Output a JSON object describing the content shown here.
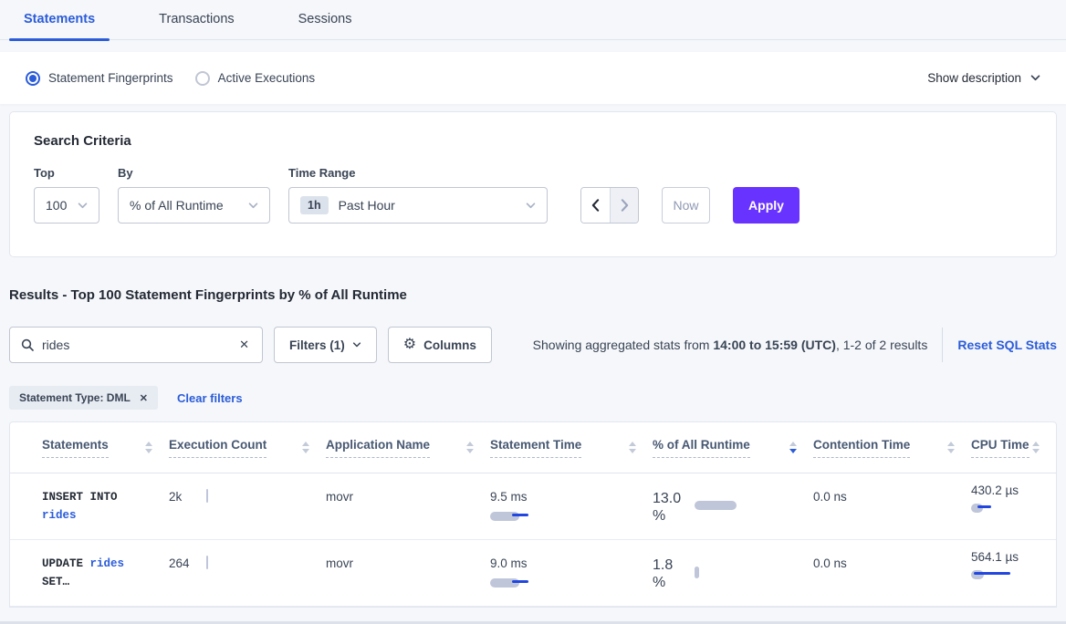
{
  "colors": {
    "accent_purple": "#6933ff",
    "link_blue": "#2b5cd9",
    "bar_gray": "#bfc6d9",
    "bar_blue": "#2247e0",
    "page_bg": "#f5f7fa"
  },
  "tabs": [
    {
      "label": "Statements",
      "active": true
    },
    {
      "label": "Transactions",
      "active": false
    },
    {
      "label": "Sessions",
      "active": false
    }
  ],
  "view_toggle": {
    "options": [
      {
        "label": "Statement Fingerprints",
        "selected": true
      },
      {
        "label": "Active Executions",
        "selected": false
      }
    ],
    "show_description": "Show description"
  },
  "search_criteria": {
    "title": "Search Criteria",
    "top": {
      "label": "Top",
      "value": "100"
    },
    "by": {
      "label": "By",
      "value": "% of All Runtime"
    },
    "time_range": {
      "label": "Time Range",
      "badge": "1h",
      "value": "Past Hour"
    },
    "now_label": "Now",
    "apply_label": "Apply"
  },
  "results": {
    "heading": "Results - Top 100 Statement Fingerprints by % of All Runtime",
    "search_value": "rides",
    "filters_label": "Filters (1)",
    "columns_label": "Columns",
    "gear_icon": "⚙",
    "stats_prefix": "Showing aggregated stats from ",
    "stats_bold": "14:00 to 15:59 (UTC)",
    "stats_suffix": ", 1-2 of 2 results",
    "reset_label": "Reset SQL Stats",
    "filter_chip": "Statement Type: DML",
    "chip_close": "✕",
    "search_clear": "✕",
    "clear_filters": "Clear filters"
  },
  "table": {
    "headers": [
      {
        "label": "Statements",
        "sort": "none"
      },
      {
        "label": "Execution Count",
        "sort": "none"
      },
      {
        "label": "Application Name",
        "sort": "none"
      },
      {
        "label": "Statement Time",
        "sort": "none"
      },
      {
        "label": "% of All Runtime",
        "sort": "desc"
      },
      {
        "label": "Contention Time",
        "sort": "none"
      },
      {
        "label": "CPU Time",
        "sort": "none"
      }
    ],
    "rows": [
      {
        "statement_prefix": "INSERT INTO",
        "statement_link": "rides",
        "statement_suffix": "",
        "execution_count": "2k",
        "application_name": "movr",
        "statement_time": "9.5 ms",
        "pct_runtime": "13.0 %",
        "contention_time": "0.0 ns",
        "cpu_time": "430.2 µs",
        "bars": {
          "execution_count": {
            "v": true,
            "gw": 2,
            "gh": 15
          },
          "statement_time": {
            "gw": 32,
            "bx": 24,
            "bw": 18
          },
          "pct_runtime": {
            "gw": 46
          },
          "cpu_time": {
            "gw": 13,
            "bx": 7,
            "bw": 15
          }
        }
      },
      {
        "statement_prefix": "UPDATE",
        "statement_link": "rides",
        "statement_suffix": "SET…",
        "execution_count": "264",
        "application_name": "movr",
        "statement_time": "9.0 ms",
        "pct_runtime": "1.8 %",
        "contention_time": "0.0 ns",
        "cpu_time": "564.1 µs",
        "bars": {
          "execution_count": {
            "v": true,
            "gw": 2,
            "gh": 15
          },
          "statement_time": {
            "gw": 32,
            "bx": 24,
            "bw": 18
          },
          "pct_runtime": {
            "gw": 5,
            "gh": 13
          },
          "cpu_time": {
            "gw": 14,
            "bx": 3,
            "bw": 40
          }
        }
      }
    ]
  }
}
